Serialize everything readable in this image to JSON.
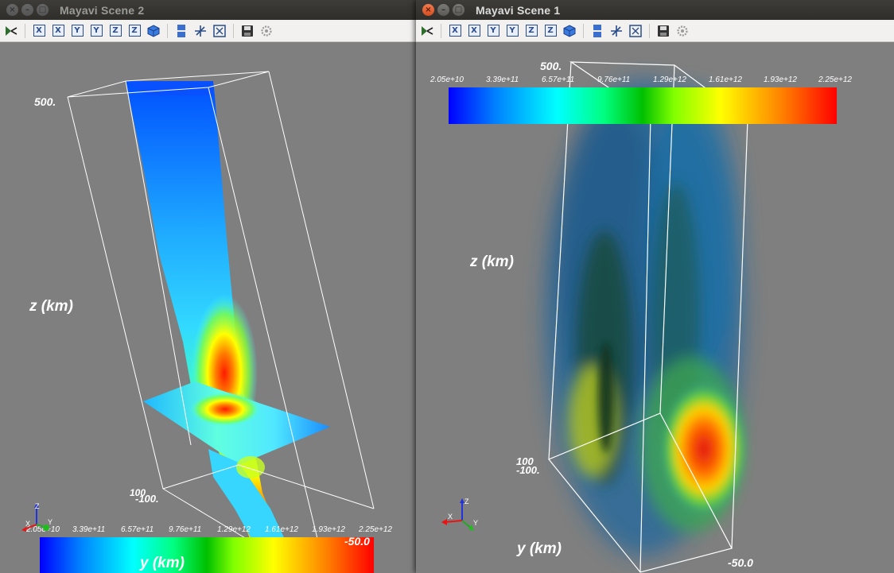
{
  "windows": {
    "scene2": {
      "title": "Mayavi Scene 2",
      "labels": {
        "z_axis": "z (km)",
        "y_axis": "y (km)",
        "z_max": "500.",
        "z_min": "100",
        "y_min": "-100.",
        "y_max": "-50.0"
      },
      "colorbar_ticks": [
        "2.05e+10",
        "3.39e+11",
        "6.57e+11",
        "9.76e+11",
        "1.29e+12",
        "1.61e+12",
        "1.93e+12",
        "2.25e+12"
      ]
    },
    "scene1": {
      "title": "Mayavi Scene 1",
      "labels": {
        "z_axis": "z (km)",
        "y_axis": "y (km)",
        "z_max": "500.",
        "z_min": "100",
        "y_min": "-100.",
        "y_max": "-50.0"
      },
      "colorbar_ticks": [
        "2.05e+10",
        "3.39e+11",
        "6.57e+11",
        "9.76e+11",
        "1.29e+12",
        "1.61e+12",
        "1.93e+12",
        "2.25e+12"
      ]
    }
  },
  "toolbar": {
    "tools": [
      "mayavi-pipeline-icon",
      "view-minus-x-icon",
      "view-plus-x-icon",
      "view-minus-y-icon",
      "view-plus-y-icon",
      "view-minus-z-icon",
      "view-plus-z-icon",
      "isometric-view-icon",
      "parallel-projection-icon",
      "toggle-axes-indicator-icon",
      "full-screen-icon",
      "save-icon",
      "configure-icon"
    ],
    "glyphs": {
      "x": "X",
      "y": "Y",
      "z": "Z"
    }
  },
  "orientation": {
    "x": "X",
    "y": "Y",
    "z": "Z"
  },
  "window_controls": {
    "close": "×",
    "minimize": "–",
    "maximize": "□"
  }
}
